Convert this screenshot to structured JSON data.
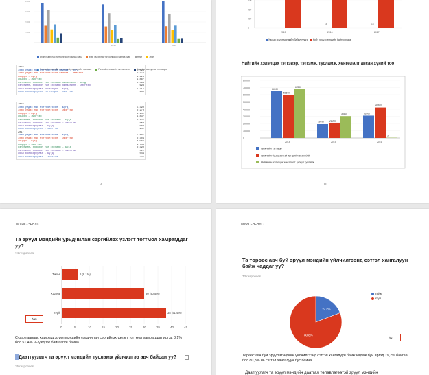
{
  "top_left": {
    "page_number": "9",
    "chart_x_labels": [
      "2016",
      "2017"
    ],
    "legend": [
      {
        "label": "Эхэн үедээ нас тогтоолгосон байгаа хувь",
        "color": "#4472c4"
      },
      {
        "label": "Эхэн үедээ нас тогтоолгосон байгаа хувь",
        "color": "#ed7d31"
      },
      {
        "label": "Нийт",
        "color": "#a5a5a5"
      },
      {
        "label": "Эхэн",
        "color": "#ffc000"
      },
      {
        "label": "Гэнэтийн, хэвлийн тал хэсгийн эмнэлгийн тусламж",
        "color": "#5b9bd5"
      },
      {
        "label": "Гэнэтийн, хэвлийн тал эмнэлэг",
        "color": "#70ad47"
      },
      {
        "label": "Хоол боловсруулах тогтолцоо",
        "color": "#264478"
      }
    ],
    "table1": {
      "rows": [
        {
          "label": "2016",
          "value": ""
        },
        {
          "label": "Эхэн үедээ нас тогтоолгосон байгаа - Бүгд",
          "value": "5 591"
        },
        {
          "label": "Эхэн үедээ нас тогтоолгосон байгаа - Эмэгтэй",
          "value": "2 374"
        },
        {
          "label": "Хоцорч - Бүгд",
          "value": "4 628"
        },
        {
          "label": "Хоцорч - Эмэгтэй",
          "value": "1 867"
        },
        {
          "label": "Гэнэтийн, хэвлийн тал хэсгийн эмнэлгийн - Бүгд",
          "value": "2 563"
        },
        {
          "label": "Гэнэтийн, хэвлийн тал хэсгийн эмнэлгийн - Эмэгтэй",
          "value": "693"
        },
        {
          "label": "Хоол боловсруулах тогтолцоо - Бүгд",
          "value": "1 311"
        },
        {
          "label": "Хоол боловсруулах тогтолцоо - Эмэгтэй",
          "value": "630"
        }
      ]
    },
    "table2": {
      "rows": [
        {
          "label": "2016",
          "value": ""
        },
        {
          "label": "Эхэн үедээ нас тогтоолгосон - Бүгд",
          "value": "5 390"
        },
        {
          "label": "Эхэн үедээ нас тогтоолгосон - Эмэгтэй",
          "value": "2 270"
        },
        {
          "label": "Хоцорч - Бүгд",
          "value": "4 142"
        },
        {
          "label": "Хоцорч - Эмэгтэй",
          "value": "1 837"
        },
        {
          "label": "Гэнэтийн, хэвлийн тал хэсгийн - Бүгд",
          "value": "2 431"
        },
        {
          "label": "Гэнэтийн, хэвлийн тал хэсгийн - Эмэгтэй",
          "value": "498"
        },
        {
          "label": "Хоол боловсруулах - Бүгд",
          "value": "583"
        },
        {
          "label": "Хоол боловсруулах - Эмэгтэй",
          "value": "242"
        },
        {
          "label": "2017",
          "value": ""
        },
        {
          "label": "Эхэн үедээ нас тогтоолгосон - Бүгд",
          "value": "5 805"
        },
        {
          "label": "Эхэн үедээ нас тогтоолгосон - Эмэгтэй",
          "value": "2 304"
        },
        {
          "label": "Хоцорч - Бүгд",
          "value": "4 067"
        },
        {
          "label": "Хоцорч - Эмэгтэй",
          "value": "1 746"
        },
        {
          "label": "Гэнэтийн, хэвлийн тал хэсгийн - Бүгд",
          "value": "2 390"
        },
        {
          "label": "Гэнэтийн, хэвлийн тал хэсгийн - Эмэгтэй",
          "value": "512"
        },
        {
          "label": "Хоол боловсруулах - Бүгд",
          "value": "544"
        },
        {
          "label": "Хоол боловсруулах - Эмэгтэй",
          "value": "231"
        }
      ]
    }
  },
  "top_right": {
    "page_number": "10",
    "title": "Нийтийн хэлэлцэх тэтгэвэр, тэтгэмж, тусламж, хөнгөлөлт авсан хүний тоо",
    "legend_top": [
      {
        "label": "Уасын эрүүл мэндийн байгууллага",
        "color": "#4472c4"
      },
      {
        "label": "Нийт эрүүл мэндийн байгууллага",
        "color": "#d9381e"
      }
    ]
  },
  "bottom_left": {
    "header": "МУИС-ЭЕВУС",
    "title": "Та эрүүл мэндийн урьдчилан сэргийлэх үзлэгт тогтмол хамрагддаг уу?",
    "responses": "74 responses",
    "tag": "№6",
    "paragraph": "Судалгаанаас харахад эрүүл мэндийн урьдчилан сэргийлэх үзлэгт тогтмол хамрагддаг иргэд 8,1% бол 51,4% нь үзүүлж байгаагүй байна.",
    "question2": "Даатгуулагч та эрүүл мэндийн тусламж үйлчилгээ авч байсан уу?",
    "responses2": "35 responses"
  },
  "bottom_right": {
    "header": "МУИС-ЭЕВУС",
    "title": "Та төрөөс авч буй эрүүл мэндийн үйлчилгээнд сэтгэл хангалуун байж чаддаг уу?",
    "responses": "73 responses",
    "tag": "№7",
    "legend": [
      {
        "label": "Тийм",
        "color": "#4472c4"
      },
      {
        "label": "Үгүй",
        "color": "#d9381e"
      }
    ],
    "paragraph": "Төрөөс авч буй эрүүл мэндийн үйлчилгээнд сэтгэл хангалуун байж чадаж буй иргэд 19,2% байгаа бол 80,8% нь сэтгэл хангалуун бус байна.",
    "cut_line": "Даатгуулагч та эрүүл мэндийн даатгал төлөвлөгөөтэй эрүүл мэндийн"
  },
  "chart_data": [
    {
      "type": "bar",
      "id": "top-left-grouped",
      "categories": [
        "",
        "2016",
        "2017"
      ],
      "series": [
        {
          "values": [
            5591,
            5390,
            5805
          ],
          "color": "#4472c4"
        },
        {
          "values": [
            2374,
            2270,
            2304
          ],
          "color": "#ed7d31"
        },
        {
          "values": [
            4628,
            4142,
            4067
          ],
          "color": "#a5a5a5"
        },
        {
          "values": [
            1867,
            1837,
            1746
          ],
          "color": "#ffc000"
        },
        {
          "values": [
            2563,
            2431,
            2390
          ],
          "color": "#5b9bd5"
        },
        {
          "values": [
            693,
            498,
            512
          ],
          "color": "#70ad47"
        },
        {
          "values": [
            1311,
            583,
            544
          ],
          "color": "#264478"
        }
      ]
    },
    {
      "type": "bar",
      "id": "top-right-small",
      "categories": [
        "2015",
        "2016",
        "2017"
      ],
      "ylim": [
        0,
        600
      ],
      "yticks": [
        "600",
        "400",
        "200",
        "0"
      ],
      "series": [
        {
          "name": "Уасын эрүүл мэндийн байгууллага",
          "values": [
            0,
            15,
            13
          ],
          "labels": [
            "",
            "15",
            "13"
          ],
          "color": "#4472c4"
        },
        {
          "name": "Нийт эрүүл мэндийн байгууллага",
          "values": [
            800,
            800,
            800
          ],
          "color": "#d9381e"
        }
      ]
    },
    {
      "type": "bar",
      "id": "top-right-main",
      "categories": [
        "2014",
        "2015",
        "2016"
      ],
      "ylim": [
        0,
        80000
      ],
      "yticks": [
        "80000",
        "70000",
        "60000",
        "50000",
        "40000",
        "30000",
        "20000",
        "10000",
        "0"
      ],
      "series": [
        {
          "name": "хөгжлийн тэтгэвэр",
          "values": [
            64900,
            19600,
            31000
          ],
          "labels": [
            "64900",
            "19600",
            "31000"
          ],
          "color": "#4472c4"
        },
        {
          "name": "хөгжлийн бэрхшээлтэй иргэдийн эсэрг буй",
          "values": [
            59600,
            21000,
            42300
          ],
          "labels": [
            "59600",
            "21000",
            "42300"
          ],
          "color": "#d9381e"
        },
        {
          "name": "Нийгмийн хэлэлцэх хөнгөлөлт, үнэгүй тусламж",
          "values": [
            67800,
            30300,
            5
          ],
          "labels": [
            "67800",
            "30300",
            "5"
          ],
          "color": "#9bbb59"
        }
      ]
    },
    {
      "type": "bar",
      "id": "bottom-left-horizontal",
      "categories": [
        "Тийм",
        "Хааяа",
        "Үгүй"
      ],
      "xlim": [
        0,
        45
      ],
      "xticks": [
        "0",
        "5",
        "10",
        "15",
        "20",
        "25",
        "30",
        "35",
        "40",
        "45"
      ],
      "values": [
        6,
        30,
        38
      ],
      "labels": [
        "6 (8.1%)",
        "30 (40.5%)",
        "38 (51.4%)"
      ],
      "color": "#d9381e"
    },
    {
      "type": "pie",
      "id": "bottom-right-pie",
      "labels": [
        "Тийм",
        "Үгүй"
      ],
      "values": [
        19.2,
        80.8
      ],
      "value_labels": [
        "19.2%",
        "80.8%"
      ],
      "colors": [
        "#4472c4",
        "#d9381e"
      ]
    }
  ]
}
